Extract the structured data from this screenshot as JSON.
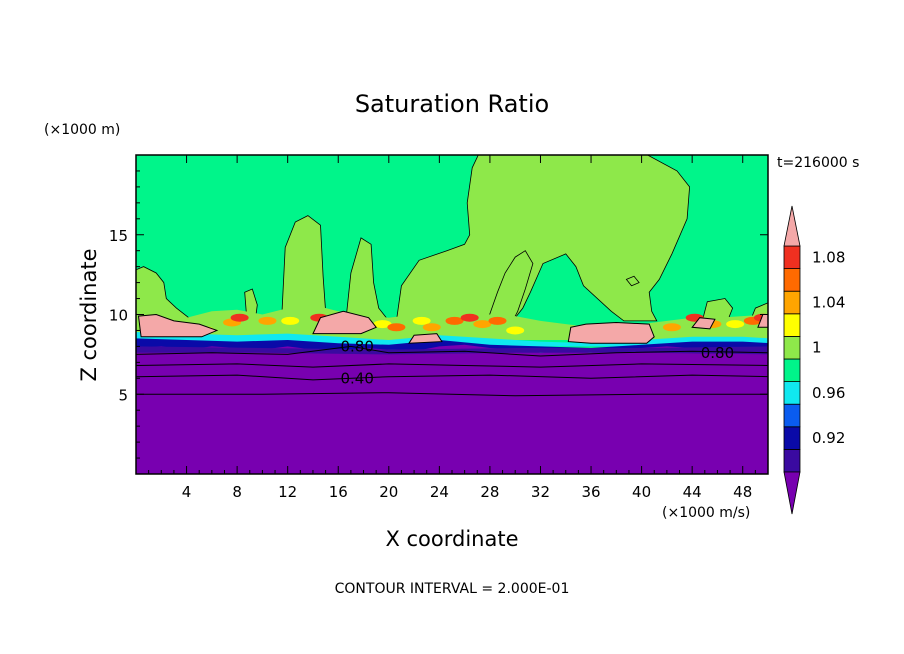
{
  "chart_data": {
    "type": "heatmap",
    "title": "Saturation Ratio",
    "xlabel": "X coordinate",
    "ylabel": "Z coordinate",
    "x_unit": "(×1000 m/s)",
    "y_unit": "(×1000 m)",
    "time_label": "t=216000 s",
    "footer": "CONTOUR INTERVAL = 2.000E-01",
    "xlim": [
      0,
      50
    ],
    "ylim": [
      0,
      20
    ],
    "x_ticks": [
      4,
      8,
      12,
      16,
      20,
      24,
      28,
      32,
      36,
      40,
      44,
      48
    ],
    "y_ticks": [
      5,
      10,
      15
    ],
    "contour_labels": [
      {
        "text": "0.80",
        "x": 17.5,
        "z": 8.0
      },
      {
        "text": "0.80",
        "x": 46.0,
        "z": 7.6
      },
      {
        "text": "0.40",
        "x": 17.5,
        "z": 6.0
      }
    ],
    "colorbar": {
      "levels": [
        0.9,
        0.92,
        0.94,
        0.96,
        0.98,
        1.0,
        1.02,
        1.04,
        1.06,
        1.08,
        1.1
      ],
      "colors": [
        "#3a0aa0",
        "#0a0aa8",
        "#0a5cf0",
        "#10e8f0",
        "#00f58a",
        "#8ee84a",
        "#ffff00",
        "#ffa500",
        "#ff6a00",
        "#f03020"
      ],
      "under_color": "#7800b0",
      "over_color": "#f4a8a8",
      "tick_labels": [
        {
          "value": 0.92,
          "text": "0.92"
        },
        {
          "value": 0.96,
          "text": "0.96"
        },
        {
          "value": 1.0,
          "text": "1"
        },
        {
          "value": 1.04,
          "text": "1.04"
        },
        {
          "value": 1.08,
          "text": "1.08"
        }
      ]
    }
  }
}
